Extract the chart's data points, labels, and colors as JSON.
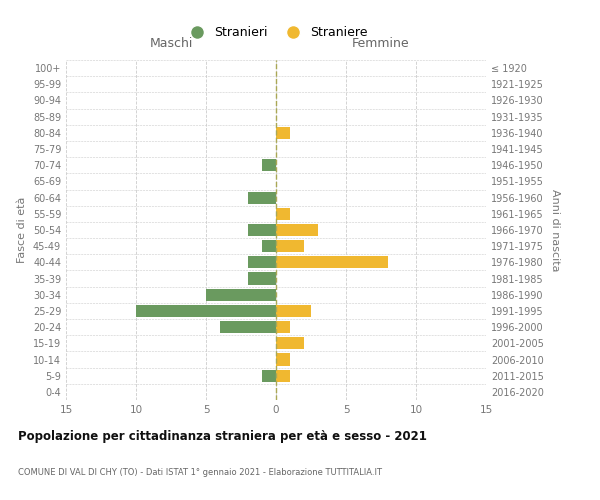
{
  "age_groups": [
    "0-4",
    "5-9",
    "10-14",
    "15-19",
    "20-24",
    "25-29",
    "30-34",
    "35-39",
    "40-44",
    "45-49",
    "50-54",
    "55-59",
    "60-64",
    "65-69",
    "70-74",
    "75-79",
    "80-84",
    "85-89",
    "90-94",
    "95-99",
    "100+"
  ],
  "birth_years": [
    "2016-2020",
    "2011-2015",
    "2006-2010",
    "2001-2005",
    "1996-2000",
    "1991-1995",
    "1986-1990",
    "1981-1985",
    "1976-1980",
    "1971-1975",
    "1966-1970",
    "1961-1965",
    "1956-1960",
    "1951-1955",
    "1946-1950",
    "1941-1945",
    "1936-1940",
    "1931-1935",
    "1926-1930",
    "1921-1925",
    "≤ 1920"
  ],
  "maschi": [
    0,
    1,
    0,
    0,
    4,
    10,
    5,
    2,
    2,
    1,
    2,
    0,
    2,
    0,
    1,
    0,
    0,
    0,
    0,
    0,
    0
  ],
  "femmine": [
    0,
    1,
    1,
    2,
    1,
    2.5,
    0,
    0,
    8,
    2,
    3,
    1,
    0,
    0,
    0,
    0,
    1,
    0,
    0,
    0,
    0
  ],
  "maschi_color": "#6a9a5f",
  "femmine_color": "#f0b830",
  "xlim": 15,
  "title": "Popolazione per cittadinanza straniera per età e sesso - 2021",
  "subtitle": "COMUNE DI VAL DI CHY (TO) - Dati ISTAT 1° gennaio 2021 - Elaborazione TUTTITALIA.IT",
  "ylabel_left": "Fasce di età",
  "ylabel_right": "Anni di nascita",
  "header_left": "Maschi",
  "header_right": "Femmine",
  "legend_stranieri": "Stranieri",
  "legend_straniere": "Straniere",
  "bg_color": "#ffffff",
  "grid_color": "#cccccc",
  "bar_height": 0.75
}
